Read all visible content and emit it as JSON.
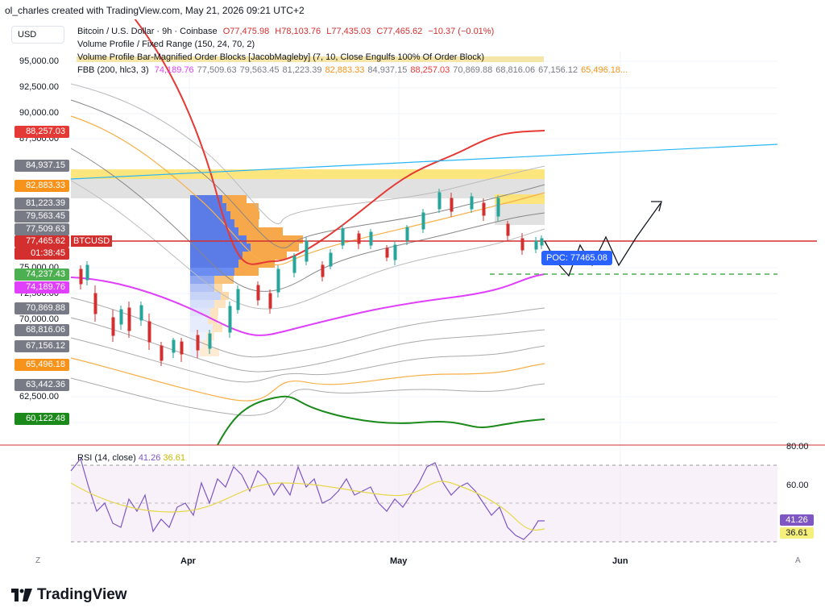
{
  "caption": "ol_charles created with TradingView.com, May 21, 2026 09:21 UTC+2",
  "symbol_button": "USD",
  "legend": {
    "line1_name": "Bitcoin / U.S. Dollar · 9h · Coinbase",
    "o": "O77,475.98",
    "h": "H78,103.76",
    "l": "L77,435.03",
    "c": "C77,465.62",
    "chg": "−10.37 (−0.01%)",
    "line2": "Volume Profile / Fixed Range (150, 24, 70, 2)",
    "line3": "Volume Profile Bar-Magnified Order Blocks [JacobMagleby] (7, 10, Close Engulfs 100% Of Order Block)",
    "fbb_name": "FBB (200, hlc3, 3)",
    "fbb_values": [
      {
        "text": "74,189.76",
        "color": "#e040fb"
      },
      {
        "text": "77,509.63",
        "color": "#787b86"
      },
      {
        "text": "79,563.45",
        "color": "#787b86"
      },
      {
        "text": "81,223.39",
        "color": "#787b86"
      },
      {
        "text": "82,883.33",
        "color": "#f7931a"
      },
      {
        "text": "84,937.15",
        "color": "#787b86"
      },
      {
        "text": "88,257.03",
        "color": "#e53935"
      },
      {
        "text": "70,869.88",
        "color": "#787b86"
      },
      {
        "text": "68,816.06",
        "color": "#787b86"
      },
      {
        "text": "67,156.12",
        "color": "#787b86"
      },
      {
        "text": "65,496.18...",
        "color": "#f7931a"
      }
    ]
  },
  "y_ticks": [
    "95,000.00",
    "92,500.00",
    "90,000.00",
    "87,500.00",
    "75,000.00",
    "72,500.00",
    "70,000.00",
    "62,500.00"
  ],
  "price_labels": [
    {
      "text": "88,257.03",
      "color": "#e53935"
    },
    {
      "text": "84,937.15",
      "color": "#787b86"
    },
    {
      "text": "82,883.33",
      "color": "#f7931a"
    },
    {
      "text": "81,223.39",
      "color": "#787b86"
    },
    {
      "text": "79,563.45",
      "color": "#787b86"
    },
    {
      "text": "77,509.63",
      "color": "#787b86"
    },
    {
      "text": "77,465.62",
      "color": "#d32f2f"
    },
    {
      "text": "01:38:45",
      "color": "#d32f2f"
    },
    {
      "text": "74,237.43",
      "color": "#4caf50"
    },
    {
      "text": "74,189.76",
      "color": "#e040fb"
    },
    {
      "text": "70,869.88",
      "color": "#787b86"
    },
    {
      "text": "68,816.06",
      "color": "#787b86"
    },
    {
      "text": "67,156.12",
      "color": "#787b86"
    },
    {
      "text": "65,496.18",
      "color": "#f7931a"
    },
    {
      "text": "63,442.36",
      "color": "#787b86"
    },
    {
      "text": "60,122.48",
      "color": "#1b8a1b"
    }
  ],
  "btcusd_tag": "BTCUSD",
  "poc_label": "POC: 77465.08",
  "x_ticks": [
    "Apr",
    "May",
    "Jun"
  ],
  "rsi": {
    "name": "RSI (14, close)",
    "value": "41.26",
    "ma": "36.61",
    "ticks": [
      "80.00",
      "60.00"
    ]
  },
  "corner_left": "Z",
  "corner_right": "A",
  "logo_text": "TradingView"
}
